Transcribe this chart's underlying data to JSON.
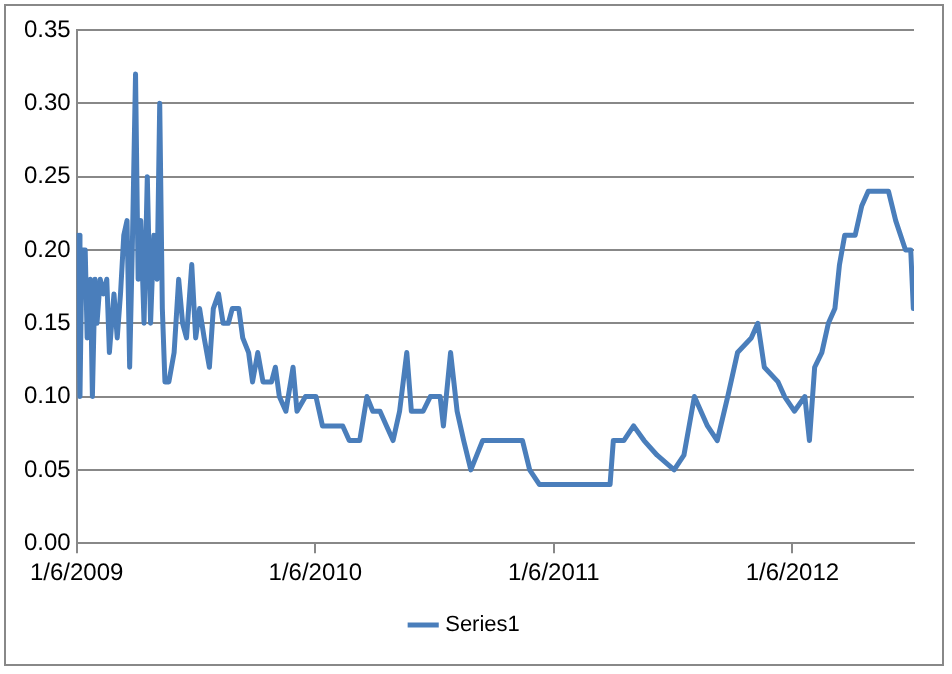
{
  "chart_data": {
    "type": "line",
    "x": [
      "2009-01-08",
      "2009-01-11",
      "2009-01-14",
      "2009-01-19",
      "2009-01-22",
      "2009-01-27",
      "2009-01-30",
      "2009-02-03",
      "2009-02-06",
      "2009-02-11",
      "2009-02-16",
      "2009-02-21",
      "2009-02-25",
      "2009-03-04",
      "2009-03-09",
      "2009-03-14",
      "2009-03-19",
      "2009-03-24",
      "2009-03-28",
      "2009-04-01",
      "2009-04-06",
      "2009-04-10",
      "2009-04-14",
      "2009-04-19",
      "2009-04-24",
      "2009-04-29",
      "2009-05-04",
      "2009-05-09",
      "2009-05-13",
      "2009-05-17",
      "2009-05-21",
      "2009-05-27",
      "2009-06-04",
      "2009-06-11",
      "2009-06-17",
      "2009-06-23",
      "2009-07-01",
      "2009-07-07",
      "2009-07-13",
      "2009-07-20",
      "2009-07-28",
      "2009-08-03",
      "2009-08-11",
      "2009-08-18",
      "2009-08-26",
      "2009-09-01",
      "2009-09-11",
      "2009-09-17",
      "2009-09-26",
      "2009-10-02",
      "2009-10-10",
      "2009-10-18",
      "2009-10-31",
      "2009-11-06",
      "2009-11-12",
      "2009-11-22",
      "2009-12-03",
      "2009-12-09",
      "2009-12-22",
      "2010-01-07",
      "2010-01-17",
      "2010-02-17",
      "2010-02-27",
      "2010-03-15",
      "2010-03-26",
      "2010-04-04",
      "2010-04-15",
      "2010-04-25",
      "2010-05-05",
      "2010-05-15",
      "2010-05-26",
      "2010-06-02",
      "2010-06-20",
      "2010-07-01",
      "2010-07-16",
      "2010-07-21",
      "2010-08-01",
      "2010-08-11",
      "2010-08-21",
      "2010-09-01",
      "2010-09-19",
      "2010-10-10",
      "2010-11-09",
      "2010-11-19",
      "2010-11-30",
      "2010-12-15",
      "2011-04-02",
      "2011-04-07",
      "2011-04-23",
      "2011-05-08",
      "2011-05-24",
      "2011-06-13",
      "2011-07-09",
      "2011-07-24",
      "2011-08-09",
      "2011-08-29",
      "2011-09-13",
      "2011-09-29",
      "2011-10-14",
      "2011-11-04",
      "2011-11-14",
      "2011-11-24",
      "2011-12-15",
      "2011-12-25",
      "2012-01-09",
      "2012-01-25",
      "2012-02-01",
      "2012-02-09",
      "2012-02-20",
      "2012-03-01",
      "2012-03-11",
      "2012-03-18",
      "2012-03-26",
      "2012-04-11",
      "2012-04-21",
      "2012-05-01",
      "2012-06-01",
      "2012-06-12",
      "2012-06-27",
      "2012-07-05",
      "2012-07-09"
    ],
    "series": [
      {
        "name": "Series1",
        "color": "#4a7ebb",
        "values": [
          0.21,
          0.1,
          0.2,
          0.2,
          0.14,
          0.18,
          0.1,
          0.18,
          0.15,
          0.18,
          0.17,
          0.18,
          0.13,
          0.17,
          0.14,
          0.17,
          0.21,
          0.22,
          0.12,
          0.2,
          0.32,
          0.18,
          0.22,
          0.15,
          0.25,
          0.15,
          0.21,
          0.18,
          0.3,
          0.16,
          0.11,
          0.11,
          0.13,
          0.18,
          0.15,
          0.14,
          0.19,
          0.14,
          0.16,
          0.14,
          0.12,
          0.16,
          0.17,
          0.15,
          0.15,
          0.16,
          0.16,
          0.14,
          0.13,
          0.11,
          0.13,
          0.11,
          0.11,
          0.12,
          0.1,
          0.09,
          0.12,
          0.09,
          0.1,
          0.1,
          0.08,
          0.08,
          0.07,
          0.07,
          0.1,
          0.09,
          0.09,
          0.08,
          0.07,
          0.09,
          0.13,
          0.09,
          0.09,
          0.1,
          0.1,
          0.08,
          0.13,
          0.09,
          0.07,
          0.05,
          0.07,
          0.07,
          0.07,
          0.07,
          0.05,
          0.04,
          0.04,
          0.07,
          0.07,
          0.08,
          0.07,
          0.06,
          0.05,
          0.06,
          0.1,
          0.08,
          0.07,
          0.1,
          0.13,
          0.14,
          0.15,
          0.12,
          0.11,
          0.1,
          0.09,
          0.1,
          0.07,
          0.12,
          0.13,
          0.15,
          0.16,
          0.19,
          0.21,
          0.21,
          0.23,
          0.24,
          0.24,
          0.22,
          0.2,
          0.2,
          0.16
        ]
      }
    ],
    "xlim": [
      "2009-01-06",
      "2012-07-10"
    ],
    "xticks": [
      {
        "value": "2009-01-06",
        "label": "1/6/2009"
      },
      {
        "value": "2010-01-06",
        "label": "1/6/2010"
      },
      {
        "value": "2011-01-06",
        "label": "1/6/2011"
      },
      {
        "value": "2012-01-06",
        "label": "1/6/2012"
      }
    ],
    "ylim": [
      0,
      0.35
    ],
    "yticks": [
      {
        "value": 0,
        "label": "0.00"
      },
      {
        "value": 0.05,
        "label": "0.05"
      },
      {
        "value": 0.1,
        "label": "0.10"
      },
      {
        "value": 0.15,
        "label": "0.15"
      },
      {
        "value": 0.2,
        "label": "0.20"
      },
      {
        "value": 0.25,
        "label": "0.25"
      },
      {
        "value": 0.3,
        "label": "0.30"
      },
      {
        "value": 0.35,
        "label": "0.35"
      }
    ],
    "grid": "y",
    "legend": "bottom",
    "marker": "none",
    "line_style": "solid"
  }
}
